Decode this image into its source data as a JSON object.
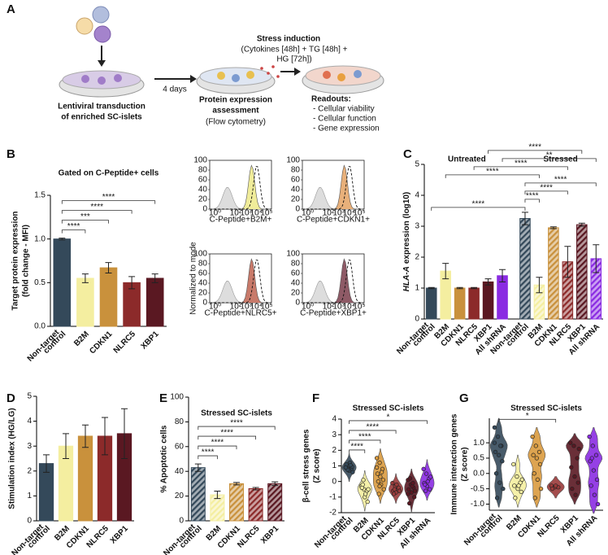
{
  "schematic": {
    "panel": "A",
    "step1": [
      "Lentiviral transduction",
      "of enriched SC-islets"
    ],
    "interval": "4 days",
    "step2": [
      "Protein expression",
      "assessment"
    ],
    "step2_method": "(Flow cytometry)",
    "stress_title": "Stress induction",
    "stress_detail": [
      "(Cytokines [48h] + TG [48h] +",
      "HG [72h])"
    ],
    "readouts_title": "Readouts:",
    "readouts": [
      "- Cellular viability",
      "- Cellular function",
      "- Gene expression"
    ]
  },
  "chart_data": [
    {
      "panel": "B",
      "type": "bar",
      "title": "Gated on C-Peptide+ cells",
      "ylabel": [
        "Target protein expression",
        "(fold change - MFI)"
      ],
      "categories": [
        [
          "Non-target",
          "control"
        ],
        "B2M",
        "CDKN1",
        "NLRC5",
        "XBP1"
      ],
      "values": [
        1.0,
        0.55,
        0.67,
        0.5,
        0.55
      ],
      "errors": [
        0.01,
        0.05,
        0.06,
        0.07,
        0.05
      ],
      "colors": [
        "#34495a",
        "#f4eea0",
        "#c9913c",
        "#8c2a2a",
        "#5a1822"
      ],
      "ylim": [
        0,
        1.5
      ],
      "yticks": [
        {
          "value": 0,
          "label": "0.0"
        },
        {
          "value": 0.5,
          "label": "0.5"
        },
        {
          "value": 1,
          "label": "1.0"
        },
        {
          "value": 1.5,
          "label": "1.5"
        }
      ],
      "significance": [
        {
          "to": 1,
          "label": "****"
        },
        {
          "to": 2,
          "label": "***"
        },
        {
          "to": 3,
          "label": "****"
        },
        {
          "to": 4,
          "label": "****"
        }
      ]
    },
    {
      "type": "flow",
      "ylabel": "Normalized to mode",
      "panels": [
        {
          "label": "C-Peptide+B2M+",
          "color": "#f0ec9a"
        },
        {
          "label": "C-Peptide+CDKN1+",
          "color": "#e8b07a"
        },
        {
          "label": "C-Peptide+NLRC5+",
          "color": "#c87a6a"
        },
        {
          "label": "C-Peptide+XBP1+",
          "color": "#8e5a66"
        }
      ],
      "yticks": [
        0,
        20,
        40,
        60,
        80,
        100
      ],
      "ylim": [
        0,
        100
      ],
      "xticks": [
        {
          "value": 1,
          "label": "10⁰"
        },
        {
          "value": 100,
          "label": "10²"
        },
        {
          "value": 1000,
          "label": "10³"
        },
        {
          "value": 10000,
          "label": "10⁴"
        },
        {
          "value": 100000,
          "label": "10⁵"
        }
      ],
      "xlim": [
        0.3,
        300000
      ],
      "xscale": "log"
    },
    {
      "panel": "C",
      "type": "bar",
      "ylabel_gene": "HLA-A",
      "ylabel": "expression (log10)",
      "categories": [
        [
          "Non-target",
          "control"
        ],
        "B2M",
        "CDKN1",
        "NLRC5",
        "XBP1",
        "All shRNA"
      ],
      "series": [
        {
          "name": "Untreated",
          "values": [
            1.0,
            1.55,
            1.0,
            1.0,
            1.2,
            1.4
          ],
          "errors": [
            0.02,
            0.25,
            0.02,
            0.02,
            0.1,
            0.2
          ]
        },
        {
          "name": "Stressed",
          "values": [
            3.25,
            1.1,
            2.95,
            1.85,
            3.05,
            1.95
          ],
          "errors": [
            0.2,
            0.25,
            0.03,
            0.5,
            0.05,
            0.45
          ],
          "hatch": true
        }
      ],
      "colors": [
        "#34495a",
        "#f4eea0",
        "#c9913c",
        "#8c2a2a",
        "#5a1822",
        "#8a2be2"
      ],
      "ylim": [
        0,
        5
      ],
      "yticks": [
        0,
        1,
        2,
        3,
        4,
        5
      ],
      "brackets": [
        {
          "from": [
            0,
            0
          ],
          "to": [
            1,
            0
          ],
          "label": "****"
        },
        {
          "from": [
            1,
            0
          ],
          "to": [
            1,
            1
          ],
          "label": "****"
        },
        {
          "from": [
            1,
            0
          ],
          "to": [
            1,
            3
          ],
          "label": "****"
        },
        {
          "from": [
            1,
            0
          ],
          "to": [
            1,
            5
          ],
          "label": "****"
        },
        {
          "from": [
            0,
            1
          ],
          "to": [
            1,
            1
          ],
          "label": "****"
        },
        {
          "from": [
            0,
            3
          ],
          "to": [
            1,
            3
          ],
          "label": "****"
        },
        {
          "from": [
            0,
            5
          ],
          "to": [
            1,
            5
          ],
          "label": "**"
        },
        {
          "from": [
            0,
            4
          ],
          "to": [
            1,
            4
          ],
          "label": "****"
        }
      ]
    },
    {
      "panel": "D",
      "type": "bar",
      "ylabel": [
        "Stimulation index (HG/LG)"
      ],
      "categories": [
        [
          "Non-target",
          "control"
        ],
        "B2M",
        "CDKN1",
        "NLRC5",
        "XBP1"
      ],
      "values": [
        2.3,
        3.0,
        3.4,
        3.4,
        3.5
      ],
      "errors": [
        0.35,
        0.5,
        0.45,
        0.75,
        1.0
      ],
      "colors": [
        "#34495a",
        "#f4eea0",
        "#c9913c",
        "#8c2a2a",
        "#5a1822"
      ],
      "ylim": [
        0,
        5
      ],
      "yticks": [
        0,
        1,
        2,
        3,
        4,
        5
      ]
    },
    {
      "panel": "E",
      "type": "bar",
      "title": "Stressed SC-islets",
      "ylabel": [
        "% Apoptotic cells"
      ],
      "categories": [
        [
          "Non-target",
          "control"
        ],
        "B2M",
        "CDKN1",
        "NLRC5",
        "XBP1"
      ],
      "values": [
        43,
        21,
        30,
        26,
        30
      ],
      "errors": [
        3,
        3,
        1,
        1,
        1.5
      ],
      "hatch": true,
      "colors": [
        "#34495a",
        "#f4eea0",
        "#c9913c",
        "#8c2a2a",
        "#5a1822"
      ],
      "ylim": [
        0,
        100
      ],
      "yticks": [
        0,
        20,
        40,
        60,
        80,
        100
      ],
      "significance": [
        {
          "to": 1,
          "label": "****"
        },
        {
          "to": 2,
          "label": "****"
        },
        {
          "to": 3,
          "label": "****"
        },
        {
          "to": 4,
          "label": "****"
        }
      ]
    },
    {
      "panel": "F",
      "type": "violin",
      "title": "Stressed SC-islets",
      "ylabel": [
        "β-cell stress genes",
        "(Z score)"
      ],
      "categories": [
        [
          "Non-target",
          "control"
        ],
        "B2M",
        "CDKN1",
        "NLRC5",
        "XBP1",
        "All shRNA"
      ],
      "colors": [
        "#34495a",
        "#f4eea0",
        "#d99a3e",
        "#9a3a3a",
        "#5a1822",
        "#8a2be2"
      ],
      "points": [
        [
          0.9,
          1.0,
          0.8,
          1.1,
          0.7,
          0.95,
          0.85,
          1.2,
          0.6,
          0.75,
          1.05,
          0.9
        ],
        [
          -0.3,
          -0.5,
          -0.6,
          -0.4,
          -1.0,
          -1.3,
          -0.2,
          -0.8,
          -0.5,
          0.1
        ],
        [
          1.5,
          1.2,
          0.8,
          0.5,
          0.3,
          0.1,
          0,
          -0.2,
          -0.5,
          -0.8,
          0.6,
          0.9,
          -0.3
        ],
        [
          -0.1,
          -0.3,
          -0.5,
          -0.6,
          -0.7,
          -0.4,
          -0.8,
          -0.2,
          -0.6,
          -0.5
        ],
        [
          0.1,
          -0.2,
          -0.4,
          -0.5,
          -0.7,
          -1.0,
          -1.4,
          -0.3,
          -0.6,
          0.2,
          -0.1,
          -0.8
        ],
        [
          0.8,
          0.5,
          0.2,
          -0.1,
          -0.3,
          -0.5,
          -0.2,
          0,
          0.3,
          -0.6
        ]
      ],
      "ylim": [
        -2,
        4
      ],
      "yticks": [
        -2,
        -1,
        0,
        1,
        2,
        3,
        4
      ],
      "significance": [
        {
          "to": 1,
          "label": "****"
        },
        {
          "to": 2,
          "label": "****"
        },
        {
          "to": 3,
          "label": "****"
        },
        {
          "to": 5,
          "label": "*"
        }
      ]
    },
    {
      "panel": "G",
      "type": "violin",
      "title": "Stressed SC-islets",
      "ylabel": [
        "Immune interaction genes",
        "(Z score)"
      ],
      "categories": [
        [
          "Non-target",
          "control"
        ],
        "B2M",
        "CDKN1",
        "NLRC5",
        "XBP1",
        "All shRNA"
      ],
      "colors": [
        "#34495a",
        "#f4eea0",
        "#d99a3e",
        "#9a3a3a",
        "#5a1822",
        "#8a2be2"
      ],
      "points": [
        [
          1.5,
          1.2,
          0.9,
          0.7,
          0.6,
          0.4,
          0.0,
          -0.3,
          -0.5,
          -0.8,
          0.9,
          1.0
        ],
        [
          0.3,
          -0.1,
          -0.3,
          -0.4,
          -0.5,
          -0.6,
          -0.8,
          -0.4,
          -0.2
        ],
        [
          1.2,
          0.9,
          0.7,
          0.6,
          0.5,
          0.3,
          0.0,
          -0.2,
          -0.5,
          -0.8
        ],
        [
          -0.4,
          -0.45,
          -0.45,
          -0.5,
          -0.4
        ],
        [
          1.0,
          0.9,
          0.5,
          0.2,
          -0.1,
          -0.3,
          -0.5,
          -0.7,
          0.8
        ],
        [
          1.2,
          0.9,
          0.6,
          0.4,
          0.1,
          -0.2,
          -0.4,
          -0.7,
          -1.0,
          0.5
        ]
      ],
      "ylim": [
        -1.2,
        1.8
      ],
      "yticks": [
        {
          "value": -1,
          "label": "-1.0"
        },
        {
          "value": -0.5,
          "label": "-0.5"
        },
        {
          "value": 0,
          "label": "0.0"
        },
        {
          "value": 0.5,
          "label": "0.5"
        },
        {
          "value": 1,
          "label": "1.0"
        }
      ],
      "significance": [
        {
          "to": 3,
          "label": "*"
        }
      ]
    }
  ]
}
